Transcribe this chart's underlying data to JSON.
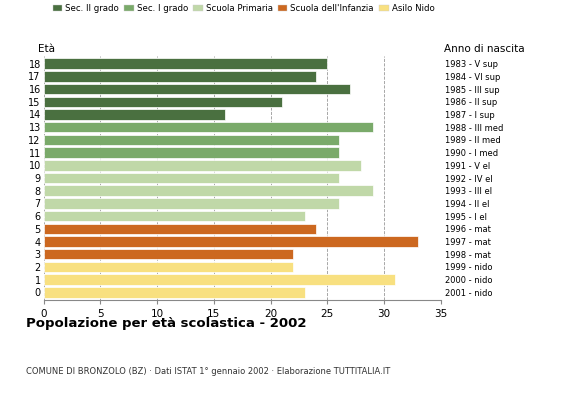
{
  "ages": [
    18,
    17,
    16,
    15,
    14,
    13,
    12,
    11,
    10,
    9,
    8,
    7,
    6,
    5,
    4,
    3,
    2,
    1,
    0
  ],
  "values": [
    25,
    24,
    27,
    21,
    16,
    29,
    26,
    26,
    28,
    26,
    29,
    26,
    23,
    24,
    33,
    22,
    22,
    31,
    23
  ],
  "right_labels": [
    "1983 - V sup",
    "1984 - VI sup",
    "1985 - III sup",
    "1986 - II sup",
    "1987 - I sup",
    "1988 - III med",
    "1989 - II med",
    "1990 - I med",
    "1991 - V el",
    "1992 - IV el",
    "1993 - III el",
    "1994 - II el",
    "1995 - I el",
    "1996 - mat",
    "1997 - mat",
    "1998 - mat",
    "1999 - nido",
    "2000 - nido",
    "2001 - nido"
  ],
  "colors": {
    "18": "#4a7040",
    "17": "#4a7040",
    "16": "#4a7040",
    "15": "#4a7040",
    "14": "#4a7040",
    "13": "#7aaa6a",
    "12": "#7aaa6a",
    "11": "#7aaa6a",
    "10": "#c0d8a8",
    "9": "#c0d8a8",
    "8": "#c0d8a8",
    "7": "#c0d8a8",
    "6": "#c0d8a8",
    "5": "#cc6820",
    "4": "#cc6820",
    "3": "#cc6820",
    "2": "#f8e080",
    "1": "#f8e080",
    "0": "#f8e080"
  },
  "legend_labels": [
    "Sec. II grado",
    "Sec. I grado",
    "Scuola Primaria",
    "Scuola dell'Infanzia",
    "Asilo Nido"
  ],
  "legend_colors": [
    "#4a7040",
    "#7aaa6a",
    "#c0d8a8",
    "#cc6820",
    "#f8e080"
  ],
  "title": "Popolazione per età scolastica - 2002",
  "subtitle": "COMUNE DI BRONZOLO (BZ) · Dati ISTAT 1° gennaio 2002 · Elaborazione TUTTITALIA.IT",
  "xlabel_eta": "Età",
  "xlabel_anno": "Anno di nascita",
  "xlim": [
    0,
    35
  ],
  "xticks": [
    0,
    5,
    10,
    15,
    20,
    25,
    30,
    35
  ],
  "bg_color": "#ffffff",
  "bar_height": 0.82
}
